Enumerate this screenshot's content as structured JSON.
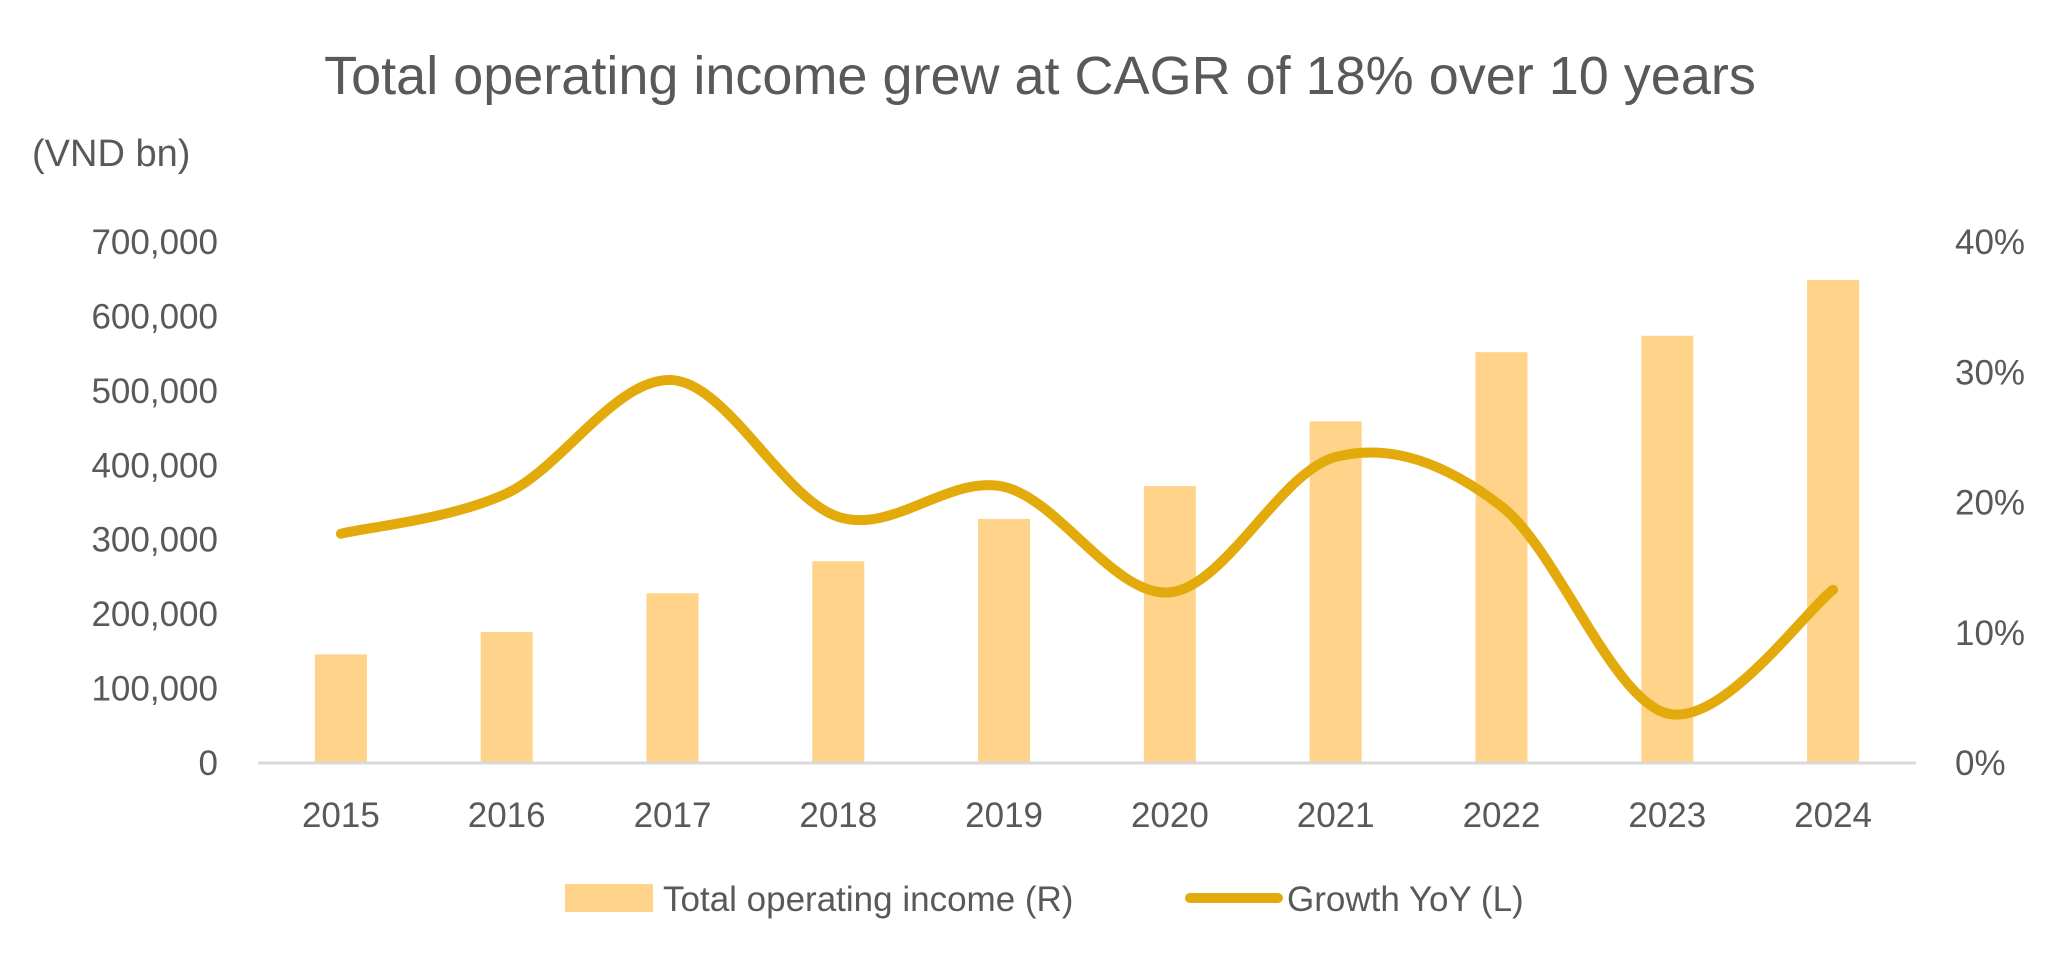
{
  "chart_data": {
    "type": "bar",
    "title": "Total operating income grew at CAGR of 18% over 10 years",
    "unit_label": "(VND bn)",
    "categories": [
      "2015",
      "2016",
      "2017",
      "2018",
      "2019",
      "2020",
      "2021",
      "2022",
      "2023",
      "2024"
    ],
    "series": [
      {
        "name": "Total operating income (R)",
        "type": "bar",
        "axis": "left",
        "color": "#FFD38A",
        "values": [
          146000,
          176000,
          228000,
          271000,
          328000,
          372000,
          459000,
          552000,
          574000,
          649000
        ]
      },
      {
        "name": "Growth YoY (L)",
        "type": "line",
        "axis": "right",
        "color": "#E3AA0B",
        "smooth": true,
        "values": [
          17.6,
          20.7,
          29.4,
          18.9,
          21.2,
          13.1,
          23.5,
          19.7,
          3.8,
          13.3
        ]
      }
    ],
    "left_axis": {
      "ylim": [
        0,
        700000
      ],
      "ticks": [
        "0",
        "100,000",
        "200,000",
        "300,000",
        "400,000",
        "500,000",
        "600,000",
        "700,000"
      ]
    },
    "right_axis": {
      "ylim": [
        0,
        40
      ],
      "ticks": [
        "0%",
        "10%",
        "20%",
        "30%",
        "40%"
      ]
    },
    "grid": false,
    "legend_position": "bottom",
    "axis_line_color": "#D9D9D9"
  }
}
